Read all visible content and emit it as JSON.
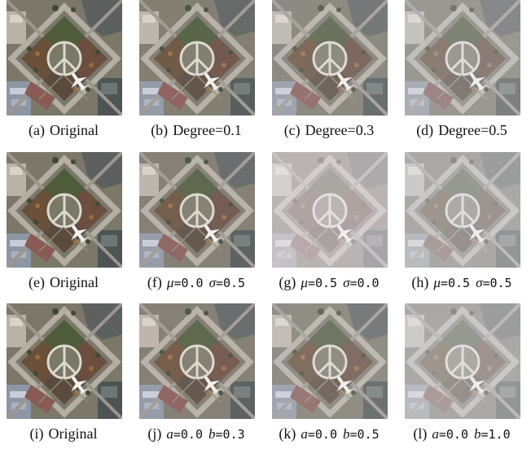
{
  "figure": {
    "rows": [
      [
        {
          "tag": "(a)",
          "text": "Original",
          "effect": "none"
        },
        {
          "tag": "(b)",
          "text": "Degree=0.1",
          "effect": "haze1"
        },
        {
          "tag": "(c)",
          "text": "Degree=0.3",
          "effect": "haze3"
        },
        {
          "tag": "(d)",
          "text": "Degree=0.5",
          "effect": "haze5"
        }
      ],
      [
        {
          "tag": "(e)",
          "text": "Original",
          "effect": "none"
        },
        {
          "tag": "(f)",
          "sym1": "μ",
          "val1": "=0.0",
          "sym2": "σ",
          "val2": "=0.5",
          "effect": "mu0s5"
        },
        {
          "tag": "(g)",
          "sym1": "μ",
          "val1": "=0.5",
          "sym2": "σ",
          "val2": "=0.0",
          "effect": "mu5s0"
        },
        {
          "tag": "(h)",
          "sym1": "μ",
          "val1": "=0.5",
          "sym2": "σ",
          "val2": "=0.5",
          "effect": "mu5s5"
        }
      ],
      [
        {
          "tag": "(i)",
          "text": "Original",
          "effect": "none"
        },
        {
          "tag": "(j)",
          "sym1": "a",
          "val1": "=0.0",
          "sym2": "b",
          "val2": "=0.3",
          "effect": "ab3"
        },
        {
          "tag": "(k)",
          "sym1": "a",
          "val1": "=0.0",
          "sym2": "b",
          "val2": "=0.5",
          "effect": "ab5"
        },
        {
          "tag": "(l)",
          "sym1": "a",
          "val1": "=0.0",
          "sym2": "b",
          "val2": "=1.0",
          "effect": "ab10"
        }
      ]
    ]
  }
}
